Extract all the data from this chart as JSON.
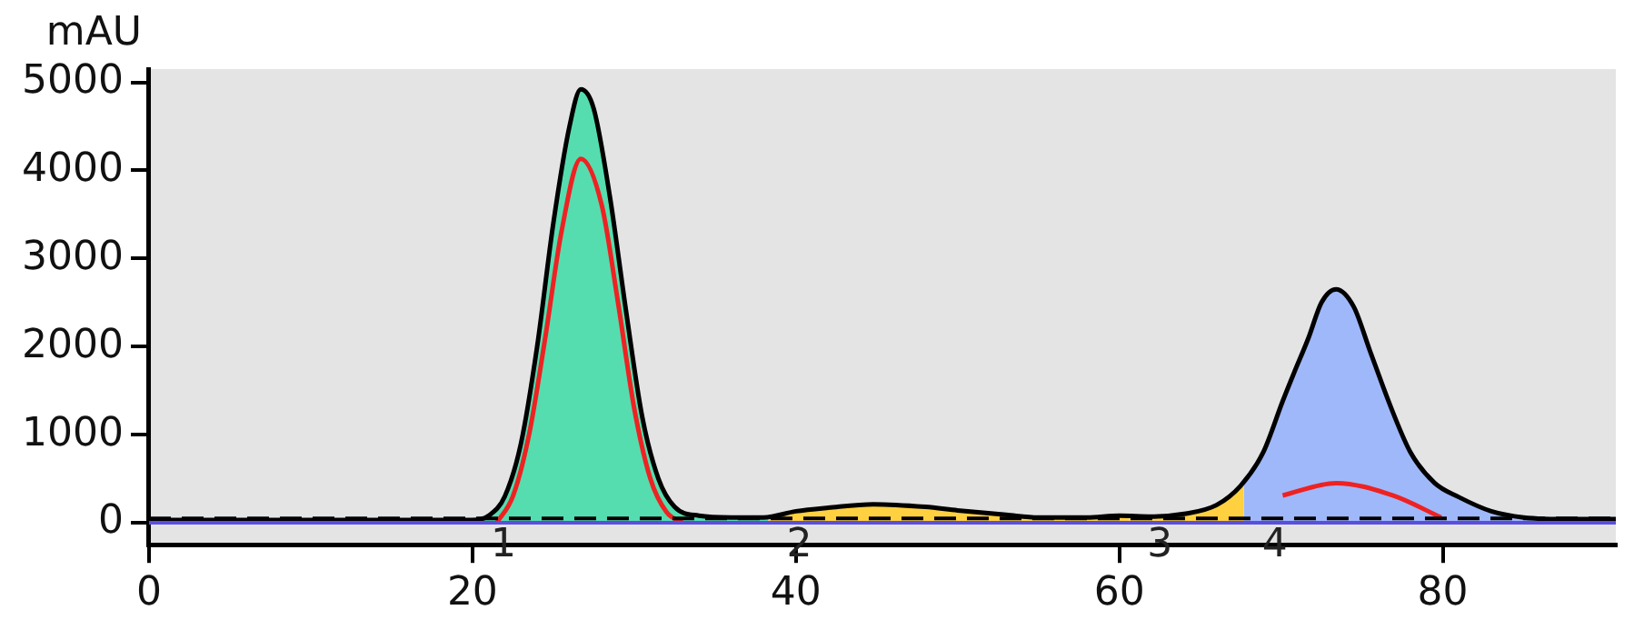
{
  "chart_data": {
    "type": "line",
    "ylabel": "mAU",
    "xlim": [
      0,
      90.7
    ],
    "ylim": [
      -250,
      5150
    ],
    "xticks": [
      0,
      20,
      40,
      60,
      80
    ],
    "yticks": [
      0,
      1000,
      2000,
      3000,
      4000,
      5000
    ],
    "grid": false,
    "legend": false,
    "marker": "none",
    "series": [
      {
        "color": "#000000",
        "x": [
          0,
          10,
          20,
          21,
          22,
          23,
          24,
          25,
          26,
          26.7,
          27.5,
          28.5,
          29.5,
          30.5,
          31.5,
          32.5,
          34,
          36,
          38,
          40,
          42,
          44.8,
          48,
          50,
          53,
          55,
          58,
          60,
          62,
          64,
          66,
          67.5,
          68.9,
          70.1,
          70.8,
          71.7,
          72.5,
          73.4,
          74.5,
          75.5,
          76.9,
          78,
          79.5,
          81,
          83,
          85,
          88,
          90.7
        ],
        "values": [
          30,
          30,
          30,
          80,
          300,
          900,
          2000,
          3400,
          4500,
          4920,
          4700,
          3700,
          2400,
          1200,
          500,
          180,
          80,
          60,
          60,
          130,
          170,
          210,
          180,
          140,
          90,
          60,
          60,
          80,
          70,
          100,
          200,
          420,
          800,
          1380,
          1700,
          2100,
          2500,
          2650,
          2450,
          1950,
          1260,
          800,
          450,
          290,
          130,
          60,
          40,
          40
        ]
      },
      {
        "color": "#ee2222",
        "x": [
          21.5,
          22.5,
          23.5,
          24.5,
          25.5,
          26.7,
          28,
          29,
          30,
          31,
          32,
          33,
          67.8,
          70.1,
          73.4,
          76.9,
          79.9
        ],
        "values": [
          0,
          300,
          1000,
          2100,
          3300,
          4130,
          3600,
          2500,
          1300,
          500,
          120,
          0,
          null,
          310,
          450,
          310,
          60
        ]
      },
      {
        "type": "area",
        "color": "#55ddb0",
        "x": [
          20,
          21,
          22,
          23,
          24,
          25,
          26,
          26.7,
          27.5,
          28.5,
          29.5,
          30.5,
          31.5,
          32.5,
          34,
          36,
          38,
          38.3
        ],
        "values": [
          30,
          80,
          300,
          900,
          2000,
          3400,
          4500,
          4920,
          4700,
          3700,
          2400,
          1200,
          500,
          180,
          80,
          60,
          60,
          70
        ]
      },
      {
        "type": "area",
        "color": "#ffd040",
        "x": [
          38.3,
          40,
          42,
          44.8,
          48,
          50,
          53,
          55,
          58,
          60,
          60.6
        ],
        "values": [
          70,
          130,
          170,
          210,
          180,
          140,
          90,
          60,
          60,
          80,
          80
        ]
      },
      {
        "type": "area",
        "color": "#ffd040",
        "x": [
          60.6,
          62,
          64,
          66,
          67.5,
          67.7
        ],
        "values": [
          80,
          70,
          100,
          200,
          420,
          460
        ]
      },
      {
        "type": "area",
        "color": "#9fb8fa",
        "x": [
          67.7,
          68.9,
          70.1,
          70.8,
          71.7,
          72.5,
          73.4,
          74.5,
          75.5,
          76.9,
          78,
          79.5,
          81,
          83,
          85,
          88,
          88.8
        ],
        "values": [
          460,
          800,
          1380,
          1700,
          2100,
          2500,
          2650,
          2450,
          1950,
          1260,
          800,
          450,
          290,
          130,
          60,
          40,
          40
        ]
      }
    ],
    "ref_lines": [
      {
        "axis": "y",
        "value": 0,
        "color": "#5a4fe0",
        "line_style": "solid"
      },
      {
        "axis": "y",
        "value": 50,
        "color": "#000000",
        "line_style": "dashed"
      }
    ],
    "annotations": [
      {
        "text": "1",
        "x": 20,
        "y": 0
      },
      {
        "text": "2",
        "x": 38.3,
        "y": 0
      },
      {
        "text": "3",
        "x": 60.6,
        "y": 0
      },
      {
        "text": "4",
        "x": 67.7,
        "y": 0
      }
    ]
  }
}
